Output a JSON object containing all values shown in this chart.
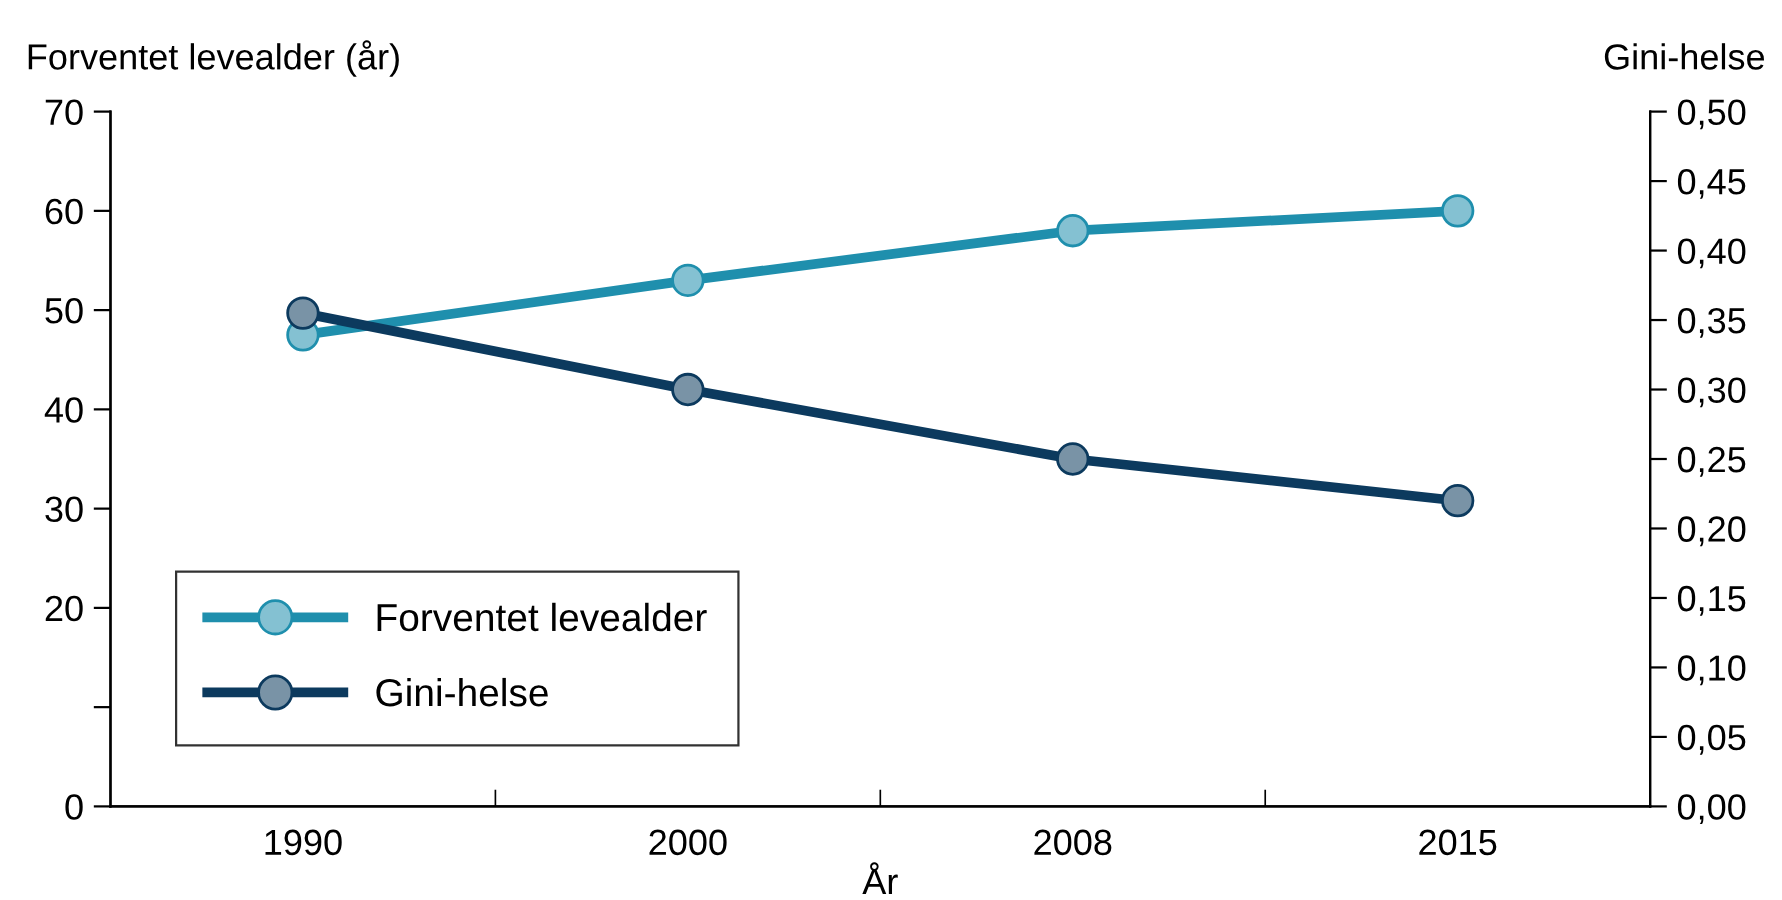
{
  "chart_data": {
    "type": "line",
    "xlabel": "År",
    "ylabel": "Forventet levealder (år)",
    "y2label": "Gini-helse",
    "categories": [
      "1990",
      "2000",
      "2008",
      "2015"
    ],
    "series": [
      {
        "name": "Forventet levealder",
        "color": "#1f8fad",
        "values": [
          47.5,
          53,
          58,
          60
        ]
      },
      {
        "name": "Gini-helse",
        "color": "#0c3a5e",
        "values": [
          0.355,
          0.3,
          0.25,
          0.22
        ],
        "axis": "y2"
      }
    ],
    "ylim": [
      0,
      70
    ],
    "yticks": [
      0,
      {
        "value": 10,
        "label": null
      },
      20,
      30,
      40,
      50,
      60,
      70
    ],
    "y2lim": [
      0,
      0.5
    ],
    "y2ticks": [
      {
        "value": 0,
        "label": "0,00"
      },
      {
        "value": 0.05,
        "label": "0,05"
      },
      {
        "value": 0.1,
        "label": "0,10"
      },
      {
        "value": 0.15,
        "label": "0,15"
      },
      {
        "value": 0.2,
        "label": "0,20"
      },
      {
        "value": 0.25,
        "label": "0,25"
      },
      {
        "value": 0.3,
        "label": "0,30"
      },
      {
        "value": 0.35,
        "label": "0,35"
      },
      {
        "value": 0.4,
        "label": "0,40"
      },
      {
        "value": 0.45,
        "label": "0,45"
      },
      {
        "value": 0.5,
        "label": "0,50"
      }
    ],
    "marker": "circle",
    "line_style": "solid",
    "grid": false,
    "legend": "bottom left"
  }
}
